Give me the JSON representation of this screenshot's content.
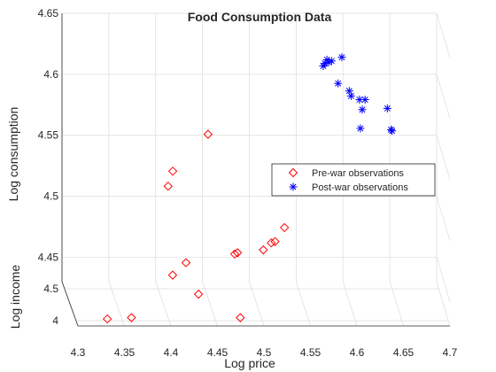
{
  "chart_data": {
    "type": "scatter3d",
    "title": "Food Consumption Data",
    "xlabel": "Log price",
    "ylabel": "Log income",
    "zlabel": "Log consumption",
    "xlim": [
      4.3,
      4.7
    ],
    "ylim": [
      3.97,
      4.6
    ],
    "zlim": [
      4.43,
      4.65
    ],
    "xticks": [
      "4.3",
      "4.35",
      "4.4",
      "4.45",
      "4.5",
      "4.55",
      "4.6",
      "4.65",
      "4.7"
    ],
    "yticks": [
      "4",
      "4.5"
    ],
    "zticks": [
      "4.45",
      "4.5",
      "4.55",
      "4.6",
      "4.65"
    ],
    "grid": true,
    "legend_position": "right",
    "series": [
      {
        "name": "Pre-war observations",
        "marker": "diamond",
        "color": "#ff0000",
        "points": [
          [
            4.332,
            3.99,
            4.435
          ],
          [
            4.358,
            3.99,
            4.436
          ],
          [
            4.432,
            4.08,
            4.452
          ],
          [
            4.475,
            3.99,
            4.436
          ],
          [
            4.405,
            4.12,
            4.466
          ],
          [
            4.42,
            4.15,
            4.475
          ],
          [
            4.473,
            4.18,
            4.481
          ],
          [
            4.476,
            4.18,
            4.482
          ],
          [
            4.504,
            4.19,
            4.484
          ],
          [
            4.513,
            4.21,
            4.489
          ],
          [
            4.517,
            4.21,
            4.49
          ],
          [
            4.528,
            4.25,
            4.5
          ],
          [
            4.405,
            4.35,
            4.53
          ],
          [
            4.41,
            4.35,
            4.542
          ],
          [
            4.449,
            4.4,
            4.57
          ]
        ]
      },
      {
        "name": "Post-war observations",
        "marker": "asterisk",
        "color": "#0000ff",
        "points": [
          [
            4.578,
            4.55,
            4.622
          ],
          [
            4.58,
            4.55,
            4.625
          ],
          [
            4.582,
            4.55,
            4.623
          ],
          [
            4.585,
            4.55,
            4.624
          ],
          [
            4.576,
            4.55,
            4.62
          ],
          [
            4.596,
            4.55,
            4.627
          ],
          [
            4.592,
            4.55,
            4.606
          ],
          [
            4.604,
            4.55,
            4.6
          ],
          [
            4.606,
            4.55,
            4.596
          ],
          [
            4.615,
            4.55,
            4.593
          ],
          [
            4.621,
            4.55,
            4.593
          ],
          [
            4.618,
            4.55,
            4.585
          ],
          [
            4.645,
            4.55,
            4.586
          ],
          [
            4.616,
            4.55,
            4.57
          ],
          [
            4.649,
            4.55,
            4.569
          ],
          [
            4.65,
            4.55,
            4.568
          ]
        ]
      }
    ]
  }
}
